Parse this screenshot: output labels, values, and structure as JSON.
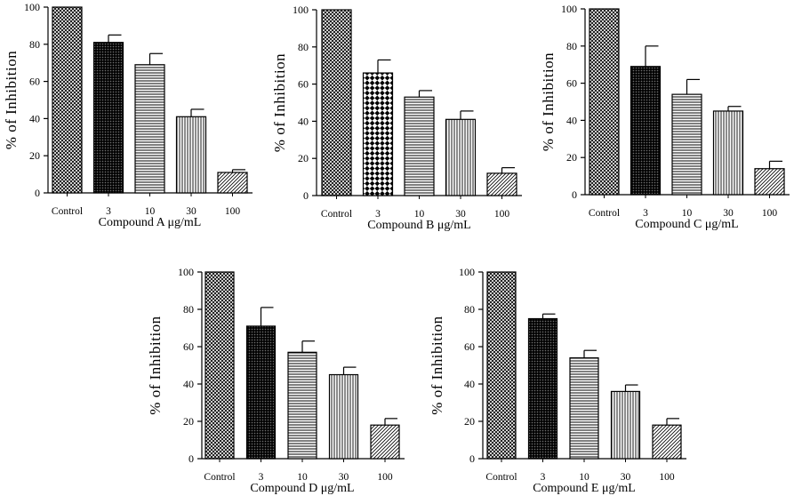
{
  "chart_data": [
    {
      "type": "bar",
      "title": "",
      "xlabel": "Compound A μg/mL",
      "ylabel": "% of Inhibition",
      "ylim": [
        0,
        100
      ],
      "yticks": [
        0,
        20,
        40,
        60,
        80,
        100
      ],
      "categories": [
        "Control",
        "3",
        "10",
        "30",
        "100"
      ],
      "values": [
        100,
        81,
        69,
        41,
        11
      ],
      "errors": [
        0,
        4,
        6,
        4,
        1.5
      ],
      "grid": false
    },
    {
      "type": "bar",
      "title": "",
      "xlabel": "Compound B μg/mL",
      "ylabel": "% of Inhibition",
      "ylim": [
        0,
        100
      ],
      "yticks": [
        0,
        20,
        40,
        60,
        80,
        100
      ],
      "categories": [
        "Control",
        "3",
        "10",
        "30",
        "100"
      ],
      "values": [
        100,
        66,
        53,
        41,
        12
      ],
      "errors": [
        0,
        7,
        3.5,
        4.5,
        3
      ],
      "grid": false
    },
    {
      "type": "bar",
      "title": "",
      "xlabel": "Compound C μg/mL",
      "ylabel": "% of Inhibition",
      "ylim": [
        0,
        100
      ],
      "yticks": [
        0,
        20,
        40,
        60,
        80,
        100
      ],
      "categories": [
        "Control",
        "3",
        "10",
        "30",
        "100"
      ],
      "values": [
        100,
        69,
        54,
        45,
        14
      ],
      "errors": [
        0,
        11,
        8,
        2.5,
        4
      ],
      "grid": false
    },
    {
      "type": "bar",
      "title": "",
      "xlabel": "Compound D μg/mL",
      "ylabel": "% of Inhibition",
      "ylim": [
        0,
        100
      ],
      "yticks": [
        0,
        20,
        40,
        60,
        80,
        100
      ],
      "categories": [
        "Control",
        "3",
        "10",
        "30",
        "100"
      ],
      "values": [
        100,
        71,
        57,
        45,
        18
      ],
      "errors": [
        0,
        10,
        6,
        4,
        3.5
      ],
      "grid": false
    },
    {
      "type": "bar",
      "title": "",
      "xlabel": "Compound E μg/mL",
      "ylabel": "% of Inhibition",
      "ylim": [
        0,
        100
      ],
      "yticks": [
        0,
        20,
        40,
        60,
        80,
        100
      ],
      "categories": [
        "Control",
        "3",
        "10",
        "30",
        "100"
      ],
      "values": [
        100,
        75,
        54,
        36,
        18
      ],
      "errors": [
        0,
        2.5,
        4,
        3.5,
        3.5
      ],
      "grid": false
    }
  ],
  "colors": {
    "ink": "#000000",
    "background": "#ffffff"
  }
}
